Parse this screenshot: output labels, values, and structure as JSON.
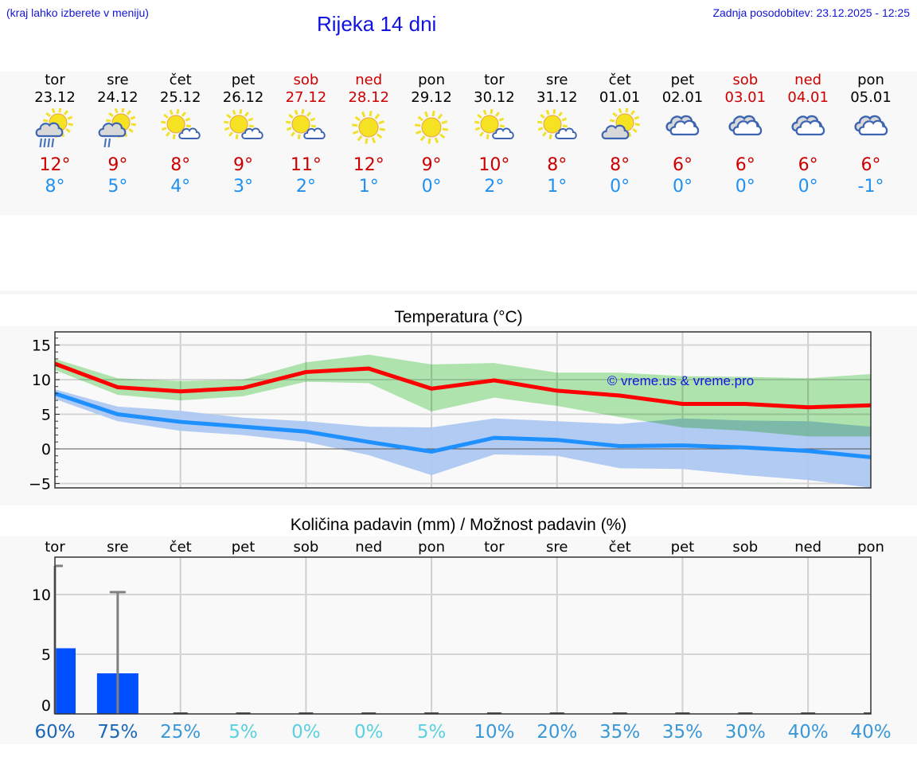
{
  "header": {
    "note": "(kraj lahko izberete v meniju)",
    "title": "Rijeka 14 dni",
    "updated": "Zadnja posodobitev: 23.12.2025 - 12:25"
  },
  "forecast": {
    "days": [
      {
        "day": "tor",
        "date": "23.12",
        "weekend": false,
        "icon": "sun-cloud-heavy-rain-icon",
        "max": "12°",
        "min": "8°"
      },
      {
        "day": "sre",
        "date": "24.12",
        "weekend": false,
        "icon": "sun-cloud-light-rain-icon",
        "max": "9°",
        "min": "5°"
      },
      {
        "day": "čet",
        "date": "25.12",
        "weekend": false,
        "icon": "sun-small-cloud-icon",
        "max": "8°",
        "min": "4°"
      },
      {
        "day": "pet",
        "date": "26.12",
        "weekend": false,
        "icon": "sun-small-cloud-icon",
        "max": "9°",
        "min": "3°"
      },
      {
        "day": "sob",
        "date": "27.12",
        "weekend": true,
        "icon": "sun-small-cloud-icon",
        "max": "11°",
        "min": "2°"
      },
      {
        "day": "ned",
        "date": "28.12",
        "weekend": true,
        "icon": "sun-icon",
        "max": "12°",
        "min": "1°"
      },
      {
        "day": "pon",
        "date": "29.12",
        "weekend": false,
        "icon": "sun-icon",
        "max": "9°",
        "min": "0°"
      },
      {
        "day": "tor",
        "date": "30.12",
        "weekend": false,
        "icon": "sun-small-cloud-icon",
        "max": "10°",
        "min": "2°"
      },
      {
        "day": "sre",
        "date": "31.12",
        "weekend": false,
        "icon": "sun-small-cloud-icon",
        "max": "8°",
        "min": "1°"
      },
      {
        "day": "čet",
        "date": "01.01",
        "weekend": false,
        "icon": "cloud-sun-icon",
        "max": "8°",
        "min": "0°"
      },
      {
        "day": "pet",
        "date": "02.01",
        "weekend": false,
        "icon": "overcast-icon",
        "max": "6°",
        "min": "0°"
      },
      {
        "day": "sob",
        "date": "03.01",
        "weekend": true,
        "icon": "overcast-icon",
        "max": "6°",
        "min": "0°"
      },
      {
        "day": "ned",
        "date": "04.01",
        "weekend": true,
        "icon": "overcast-icon",
        "max": "6°",
        "min": "0°"
      },
      {
        "day": "pon",
        "date": "05.01",
        "weekend": false,
        "icon": "overcast-icon",
        "max": "6°",
        "min": "-1°"
      }
    ]
  },
  "colors": {
    "weekend": "#cc0000",
    "max_temp": "#cc0000",
    "min_temp": "#2090f0",
    "max_line": "#ff0000",
    "min_line": "#1e90ff",
    "max_band": "#aee8ad",
    "min_band": "#aec8f2",
    "precip_bar": "#0050ff",
    "error_bar": "#808080",
    "watermark": "#1414e6"
  },
  "chart_data": [
    {
      "type": "line",
      "title": "Temperatura (°C)",
      "xlabel": "",
      "ylabel": "",
      "ylim": [
        -5.8,
        16.8
      ],
      "yticks": [
        -5,
        0,
        5,
        10,
        15
      ],
      "ytick_labels": [
        "−5",
        "0",
        "5",
        "10",
        "15"
      ],
      "grid": true,
      "watermark": "© vreme.us & vreme.pro",
      "x": [
        "23.12",
        "24.12",
        "25.12",
        "26.12",
        "27.12",
        "28.12",
        "29.12",
        "30.12",
        "31.12",
        "01.01",
        "02.01",
        "03.01",
        "04.01",
        "05.01"
      ],
      "series": [
        {
          "name": "max",
          "values": [
            12.3,
            8.9,
            8.3,
            8.8,
            11.1,
            11.6,
            8.7,
            9.9,
            8.4,
            7.7,
            6.5,
            6.5,
            6.0,
            6.3
          ]
        },
        {
          "name": "max_band_upper",
          "values": [
            13.0,
            10.2,
            9.8,
            10.0,
            12.5,
            13.6,
            12.2,
            12.4,
            11.0,
            11.0,
            10.5,
            10.4,
            10.2,
            10.8
          ]
        },
        {
          "name": "max_band_lower",
          "values": [
            11.4,
            7.8,
            7.0,
            7.6,
            9.7,
            9.5,
            5.4,
            7.4,
            6.2,
            4.6,
            3.1,
            2.6,
            1.8,
            1.8
          ]
        },
        {
          "name": "min",
          "values": [
            8.0,
            5.0,
            3.9,
            3.2,
            2.5,
            1.0,
            -0.4,
            1.6,
            1.3,
            0.4,
            0.5,
            0.2,
            -0.3,
            -1.2
          ]
        },
        {
          "name": "min_band_upper",
          "values": [
            8.6,
            6.1,
            5.5,
            4.5,
            4.0,
            3.2,
            3.1,
            4.4,
            4.0,
            3.6,
            4.4,
            4.1,
            4.0,
            3.2
          ]
        },
        {
          "name": "min_band_lower",
          "values": [
            7.2,
            4.0,
            2.6,
            2.0,
            1.0,
            -0.9,
            -3.8,
            -0.8,
            -1.0,
            -2.8,
            -2.9,
            -3.8,
            -4.5,
            -5.6
          ]
        }
      ]
    },
    {
      "type": "bar",
      "title": "Količina padavin (mm) / Možnost padavin (%)",
      "xlabel": "",
      "ylabel": "",
      "ylim": [
        0,
        13
      ],
      "yticks": [
        0,
        5,
        10
      ],
      "grid": true,
      "categories": [
        "tor",
        "sre",
        "čet",
        "pet",
        "sob",
        "ned",
        "pon",
        "tor",
        "sre",
        "čet",
        "pet",
        "sob",
        "ned",
        "pon"
      ],
      "values": [
        5.5,
        3.4,
        0,
        0,
        0,
        0,
        0,
        0,
        0,
        0,
        0,
        0,
        0,
        0
      ],
      "error_top": [
        12.4,
        10.2,
        0,
        0,
        0,
        0,
        0,
        0,
        0,
        0,
        0,
        0,
        0,
        0
      ],
      "probability": [
        "60%",
        "75%",
        "25%",
        "5%",
        "0%",
        "0%",
        "5%",
        "10%",
        "20%",
        "35%",
        "35%",
        "30%",
        "40%",
        "40%"
      ],
      "probability_colors": [
        "#1a66b8",
        "#1a66b8",
        "#3a98d6",
        "#5ad0e0",
        "#5ad0e0",
        "#5ad0e0",
        "#5ad0e0",
        "#3a98d6",
        "#3a98d6",
        "#3a98d6",
        "#3a98d6",
        "#3a98d6",
        "#3a98d6",
        "#3a98d6"
      ]
    }
  ]
}
